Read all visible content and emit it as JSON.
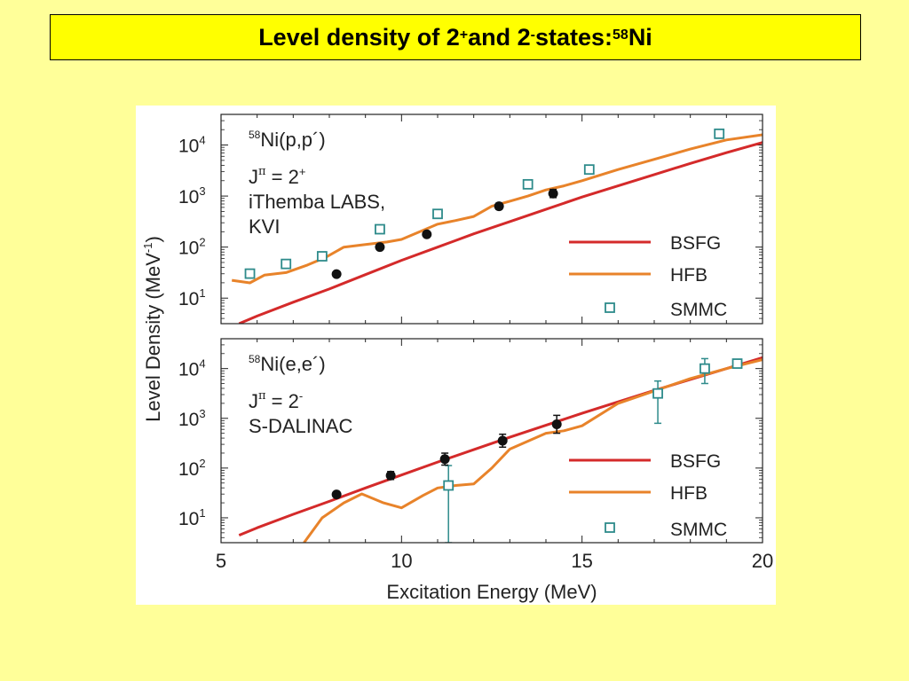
{
  "slide": {
    "title_prefix": "Level density of 2",
    "title_sup1": "+",
    "title_mid": " and 2",
    "title_sup2": "-",
    "title_mid2": " states: ",
    "title_sup3": "58",
    "title_suffix": "Ni"
  },
  "colors": {
    "bsfg": "#d42a2a",
    "hfb": "#e8832a",
    "smmc": "#2e8b8b",
    "data_points": "#111111"
  },
  "chart_data": [
    {
      "type": "line",
      "panel": "top",
      "xlim": [
        5,
        20
      ],
      "ylim_log10": [
        0.5,
        4.6
      ],
      "yticks_log10": [
        1,
        2,
        3,
        4
      ],
      "ytick_labels": [
        [
          "10",
          "1"
        ],
        [
          "10",
          "2"
        ],
        [
          "10",
          "3"
        ],
        [
          "10",
          "4"
        ]
      ],
      "annotation": {
        "reaction_sup": "58",
        "reaction_el": "N",
        "reaction_rest": "i(p,p´)",
        "jpi_J": "J",
        "jpi_pi": "π",
        "jpi_eq": " = 2",
        "jpi_parity": "+",
        "facility_line1": "iThemba LABS,",
        "facility_line2": "KVI"
      },
      "legend": [
        {
          "label": "BSFG",
          "style": "line",
          "color": "#d42a2a"
        },
        {
          "label": "HFB",
          "style": "line",
          "color": "#e8832a"
        },
        {
          "label": "SMMC",
          "style": "square",
          "color": "#2e8b8b"
        }
      ],
      "series": [
        {
          "name": "BSFG",
          "x": [
            5.5,
            6,
            7,
            8,
            9,
            10,
            11,
            12,
            13,
            14,
            15,
            16,
            17,
            18,
            19,
            20
          ],
          "log10y": [
            0.5,
            0.65,
            0.92,
            1.18,
            1.46,
            1.74,
            2.0,
            2.26,
            2.5,
            2.74,
            2.98,
            3.2,
            3.42,
            3.64,
            3.85,
            4.05
          ]
        },
        {
          "name": "HFB",
          "x": [
            5.3,
            5.8,
            6.2,
            6.8,
            7.4,
            7.9,
            8.4,
            9.0,
            9.6,
            10.0,
            10.5,
            11.0,
            11.5,
            12.0,
            12.5,
            13.0,
            13.5,
            14.0,
            14.5,
            15.0,
            16.0,
            17.0,
            18.0,
            19.0,
            20.0
          ],
          "log10y": [
            1.35,
            1.3,
            1.45,
            1.5,
            1.65,
            1.8,
            2.0,
            2.05,
            2.1,
            2.15,
            2.3,
            2.45,
            2.52,
            2.6,
            2.8,
            2.9,
            3.0,
            3.12,
            3.2,
            3.3,
            3.52,
            3.72,
            3.92,
            4.1,
            4.2
          ]
        },
        {
          "name": "SMMC",
          "style": "square",
          "x": [
            5.8,
            6.8,
            7.8,
            9.4,
            11.0,
            13.5,
            15.2,
            18.8
          ],
          "log10y": [
            1.48,
            1.67,
            1.82,
            2.35,
            2.65,
            3.23,
            3.52,
            4.22
          ]
        },
        {
          "name": "data",
          "style": "dot",
          "x": [
            8.2,
            9.4,
            10.7,
            12.7,
            14.2
          ],
          "log10y": [
            1.47,
            2.0,
            2.25,
            2.8,
            3.05
          ],
          "err": [
            0.03,
            0.04,
            0.04,
            0.06,
            0.08
          ]
        }
      ]
    },
    {
      "type": "line",
      "panel": "bottom",
      "xlim": [
        5,
        20
      ],
      "ylim_log10": [
        0.5,
        4.6
      ],
      "yticks_log10": [
        1,
        2,
        3,
        4
      ],
      "ytick_labels": [
        [
          "10",
          "1"
        ],
        [
          "10",
          "2"
        ],
        [
          "10",
          "3"
        ],
        [
          "10",
          "4"
        ]
      ],
      "xticks": [
        5,
        10,
        15,
        20
      ],
      "xtick_labels": [
        "5",
        "10",
        "15",
        "20"
      ],
      "xlabel": "Excitation Energy (MeV)",
      "ylabel_main": "Level Density (MeV",
      "ylabel_sup": "-1",
      "ylabel_close": ")",
      "annotation": {
        "reaction_sup": "58",
        "reaction_el": "N",
        "reaction_rest": "i(e,e´)",
        "jpi_J": "J",
        "jpi_pi": "π",
        "jpi_eq": " = 2",
        "jpi_parity": "-",
        "facility_line1": "S-DALINAC"
      },
      "legend": [
        {
          "label": "BSFG",
          "style": "line",
          "color": "#d42a2a"
        },
        {
          "label": "HFB",
          "style": "line",
          "color": "#e8832a"
        },
        {
          "label": "SMMC",
          "style": "square",
          "color": "#2e8b8b"
        }
      ],
      "series": [
        {
          "name": "BSFG",
          "x": [
            5.5,
            6,
            7,
            8,
            9,
            10,
            11,
            12,
            13,
            14,
            15,
            16,
            17,
            18,
            19,
            20
          ],
          "log10y": [
            0.65,
            0.8,
            1.07,
            1.33,
            1.6,
            1.86,
            2.12,
            2.37,
            2.62,
            2.86,
            3.1,
            3.33,
            3.56,
            3.78,
            4.0,
            4.22
          ]
        },
        {
          "name": "HFB",
          "x": [
            7.3,
            7.8,
            8.4,
            8.9,
            9.5,
            10.0,
            10.6,
            11.0,
            11.5,
            12.0,
            12.5,
            13.0,
            14.0,
            14.5,
            15.0,
            16.0,
            17.0,
            18.0,
            19.0,
            20.0
          ],
          "log10y": [
            0.5,
            1.0,
            1.3,
            1.48,
            1.3,
            1.2,
            1.45,
            1.6,
            1.65,
            1.68,
            2.0,
            2.38,
            2.7,
            2.75,
            2.85,
            3.3,
            3.55,
            3.8,
            4.0,
            4.18
          ]
        },
        {
          "name": "SMMC",
          "style": "square",
          "x": [
            11.3,
            17.1,
            18.4,
            19.3
          ],
          "log10y": [
            1.65,
            3.5,
            4.0,
            4.1
          ],
          "err_lo": [
            1.15,
            0.6,
            0.3,
            0.04
          ],
          "err_hi": [
            0.4,
            0.25,
            0.2,
            0.04
          ]
        },
        {
          "name": "data",
          "style": "dot",
          "x": [
            8.2,
            9.7,
            11.2,
            12.8,
            14.3
          ],
          "log10y": [
            1.47,
            1.85,
            2.18,
            2.55,
            2.88
          ],
          "err": [
            0.04,
            0.08,
            0.12,
            0.13,
            0.18
          ]
        }
      ]
    }
  ]
}
